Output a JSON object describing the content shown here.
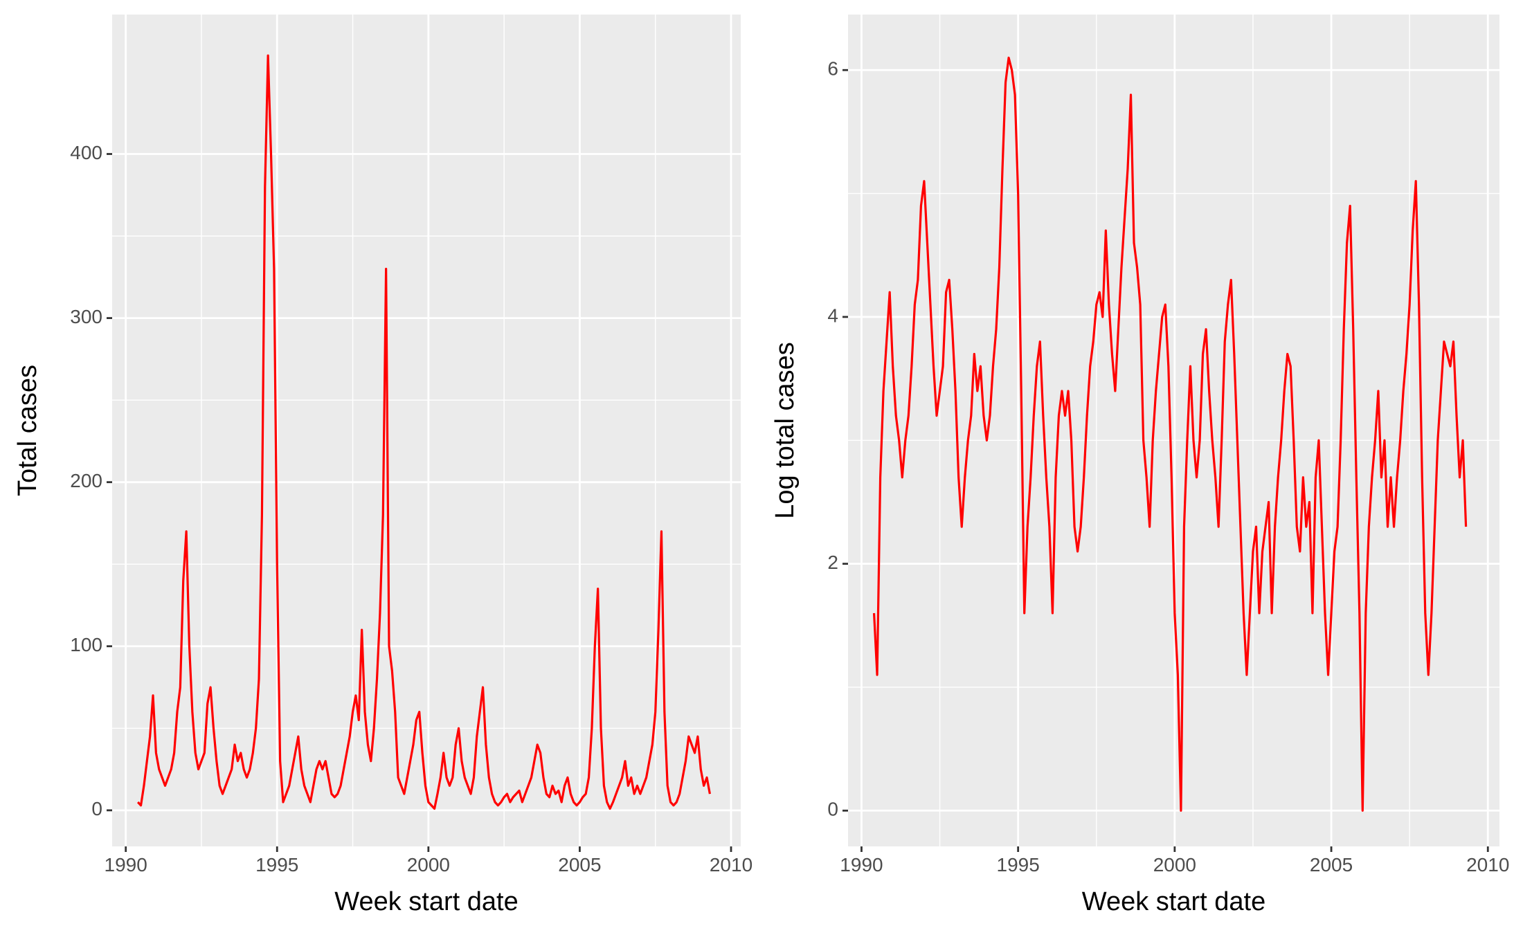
{
  "chart_data": [
    {
      "type": "line",
      "xlabel": "Week start date",
      "ylabel": "Total cases",
      "x": [
        1990.4,
        1990.5,
        1990.6,
        1990.7,
        1990.8,
        1990.9,
        1991.0,
        1991.1,
        1991.2,
        1991.3,
        1991.4,
        1991.5,
        1991.6,
        1991.7,
        1991.8,
        1991.9,
        1992.0,
        1992.1,
        1992.2,
        1992.3,
        1992.4,
        1992.5,
        1992.6,
        1992.7,
        1992.8,
        1992.9,
        1993.0,
        1993.1,
        1993.2,
        1993.3,
        1993.4,
        1993.5,
        1993.6,
        1993.7,
        1993.8,
        1993.9,
        1994.0,
        1994.1,
        1994.2,
        1994.3,
        1994.4,
        1994.5,
        1994.6,
        1994.7,
        1994.8,
        1994.9,
        1995.0,
        1995.1,
        1995.2,
        1995.3,
        1995.4,
        1995.5,
        1995.6,
        1995.7,
        1995.8,
        1995.9,
        1996.0,
        1996.1,
        1996.2,
        1996.3,
        1996.4,
        1996.5,
        1996.6,
        1996.7,
        1996.8,
        1996.9,
        1997.0,
        1997.1,
        1997.2,
        1997.3,
        1997.4,
        1997.5,
        1997.6,
        1997.7,
        1997.8,
        1997.9,
        1998.0,
        1998.1,
        1998.2,
        1998.3,
        1998.4,
        1998.5,
        1998.6,
        1998.7,
        1998.8,
        1998.9,
        1999.0,
        1999.1,
        1999.2,
        1999.3,
        1999.4,
        1999.5,
        1999.6,
        1999.7,
        1999.8,
        1999.9,
        2000.0,
        2000.1,
        2000.2,
        2000.3,
        2000.4,
        2000.5,
        2000.6,
        2000.7,
        2000.8,
        2000.9,
        2001.0,
        2001.1,
        2001.2,
        2001.3,
        2001.4,
        2001.5,
        2001.6,
        2001.7,
        2001.8,
        2001.9,
        2002.0,
        2002.1,
        2002.2,
        2002.3,
        2002.4,
        2002.5,
        2002.6,
        2002.7,
        2002.8,
        2002.9,
        2003.0,
        2003.1,
        2003.2,
        2003.3,
        2003.4,
        2003.5,
        2003.6,
        2003.7,
        2003.8,
        2003.9,
        2004.0,
        2004.1,
        2004.2,
        2004.3,
        2004.4,
        2004.5,
        2004.6,
        2004.7,
        2004.8,
        2004.9,
        2005.0,
        2005.1,
        2005.2,
        2005.3,
        2005.4,
        2005.5,
        2005.6,
        2005.7,
        2005.8,
        2005.9,
        2006.0,
        2006.1,
        2006.2,
        2006.3,
        2006.4,
        2006.5,
        2006.6,
        2006.7,
        2006.8,
        2006.9,
        2007.0,
        2007.1,
        2007.2,
        2007.3,
        2007.4,
        2007.5,
        2007.6,
        2007.7,
        2007.8,
        2007.9,
        2008.0,
        2008.1,
        2008.2,
        2008.3,
        2008.4,
        2008.5,
        2008.6,
        2008.7,
        2008.8,
        2008.9,
        2009.0,
        2009.1,
        2009.2,
        2009.3
      ],
      "color": "#ff0000",
      "values": [
        5,
        3,
        15,
        30,
        45,
        70,
        35,
        25,
        20,
        15,
        20,
        25,
        35,
        60,
        75,
        140,
        170,
        100,
        60,
        35,
        25,
        30,
        35,
        65,
        75,
        50,
        30,
        15,
        10,
        15,
        20,
        25,
        40,
        30,
        35,
        25,
        20,
        25,
        35,
        50,
        80,
        180,
        380,
        460,
        400,
        330,
        150,
        30,
        5,
        10,
        15,
        25,
        35,
        45,
        25,
        15,
        10,
        5,
        15,
        25,
        30,
        25,
        30,
        20,
        10,
        8,
        10,
        15,
        25,
        35,
        45,
        60,
        70,
        55,
        110,
        60,
        40,
        30,
        50,
        80,
        120,
        180,
        330,
        100,
        85,
        60,
        20,
        15,
        10,
        20,
        30,
        40,
        55,
        60,
        35,
        15,
        5,
        3,
        1,
        10,
        20,
        35,
        20,
        15,
        20,
        40,
        50,
        30,
        20,
        15,
        10,
        20,
        45,
        60,
        75,
        40,
        20,
        10,
        5,
        3,
        5,
        8,
        10,
        5,
        8,
        10,
        12,
        5,
        10,
        15,
        20,
        30,
        40,
        35,
        20,
        10,
        8,
        15,
        10,
        12,
        5,
        15,
        20,
        10,
        5,
        3,
        5,
        8,
        10,
        20,
        50,
        100,
        135,
        50,
        15,
        5,
        1,
        5,
        10,
        15,
        20,
        30,
        15,
        20,
        10,
        15,
        10,
        15,
        20,
        30,
        40,
        60,
        110,
        170,
        60,
        15,
        5,
        3,
        5,
        10,
        20,
        30,
        45,
        40,
        35,
        45,
        25,
        15,
        20,
        10
      ],
      "xlim": [
        1989.55,
        2010.32
      ],
      "xticks": [
        1990,
        1995,
        2000,
        2005,
        2010
      ],
      "ylim": [
        -22,
        485
      ],
      "yticks": [
        0,
        100,
        200,
        300,
        400
      ],
      "grid": true
    },
    {
      "type": "line",
      "xlabel": "Week start date",
      "ylabel": "Log total cases",
      "x": [
        1990.4,
        1990.5,
        1990.6,
        1990.7,
        1990.8,
        1990.9,
        1991.0,
        1991.1,
        1991.2,
        1991.3,
        1991.4,
        1991.5,
        1991.6,
        1991.7,
        1991.8,
        1991.9,
        1992.0,
        1992.1,
        1992.2,
        1992.3,
        1992.4,
        1992.5,
        1992.6,
        1992.7,
        1992.8,
        1992.9,
        1993.0,
        1993.1,
        1993.2,
        1993.3,
        1993.4,
        1993.5,
        1993.6,
        1993.7,
        1993.8,
        1993.9,
        1994.0,
        1994.1,
        1994.2,
        1994.3,
        1994.4,
        1994.5,
        1994.6,
        1994.7,
        1994.8,
        1994.9,
        1995.0,
        1995.1,
        1995.2,
        1995.3,
        1995.4,
        1995.5,
        1995.6,
        1995.7,
        1995.8,
        1995.9,
        1996.0,
        1996.1,
        1996.2,
        1996.3,
        1996.4,
        1996.5,
        1996.6,
        1996.7,
        1996.8,
        1996.9,
        1997.0,
        1997.1,
        1997.2,
        1997.3,
        1997.4,
        1997.5,
        1997.6,
        1997.7,
        1997.8,
        1997.9,
        1998.0,
        1998.1,
        1998.2,
        1998.3,
        1998.4,
        1998.5,
        1998.6,
        1998.7,
        1998.8,
        1998.9,
        1999.0,
        1999.1,
        1999.2,
        1999.3,
        1999.4,
        1999.5,
        1999.6,
        1999.7,
        1999.8,
        1999.9,
        2000.0,
        2000.1,
        2000.2,
        2000.3,
        2000.4,
        2000.5,
        2000.6,
        2000.7,
        2000.8,
        2000.9,
        2001.0,
        2001.1,
        2001.2,
        2001.3,
        2001.4,
        2001.5,
        2001.6,
        2001.7,
        2001.8,
        2001.9,
        2002.0,
        2002.1,
        2002.2,
        2002.3,
        2002.4,
        2002.5,
        2002.6,
        2002.7,
        2002.8,
        2002.9,
        2003.0,
        2003.1,
        2003.2,
        2003.3,
        2003.4,
        2003.5,
        2003.6,
        2003.7,
        2003.8,
        2003.9,
        2004.0,
        2004.1,
        2004.2,
        2004.3,
        2004.4,
        2004.5,
        2004.6,
        2004.7,
        2004.8,
        2004.9,
        2005.0,
        2005.1,
        2005.2,
        2005.3,
        2005.4,
        2005.5,
        2005.6,
        2005.7,
        2005.8,
        2005.9,
        2006.0,
        2006.1,
        2006.2,
        2006.3,
        2006.4,
        2006.5,
        2006.6,
        2006.7,
        2006.8,
        2006.9,
        2007.0,
        2007.1,
        2007.2,
        2007.3,
        2007.4,
        2007.5,
        2007.6,
        2007.7,
        2007.8,
        2007.9,
        2008.0,
        2008.1,
        2008.2,
        2008.3,
        2008.4,
        2008.5,
        2008.6,
        2008.7,
        2008.8,
        2008.9,
        2009.0,
        2009.1,
        2009.2,
        2009.3
      ],
      "color": "#ff0000",
      "values": [
        1.6,
        1.1,
        2.7,
        3.4,
        3.8,
        4.2,
        3.6,
        3.2,
        3.0,
        2.7,
        3.0,
        3.2,
        3.6,
        4.1,
        4.3,
        4.9,
        5.1,
        4.6,
        4.1,
        3.6,
        3.2,
        3.4,
        3.6,
        4.2,
        4.3,
        3.9,
        3.4,
        2.7,
        2.3,
        2.7,
        3.0,
        3.2,
        3.7,
        3.4,
        3.6,
        3.2,
        3.0,
        3.2,
        3.6,
        3.9,
        4.4,
        5.2,
        5.9,
        6.1,
        6.0,
        5.8,
        5.0,
        3.4,
        1.6,
        2.3,
        2.7,
        3.2,
        3.6,
        3.8,
        3.2,
        2.7,
        2.3,
        1.6,
        2.7,
        3.2,
        3.4,
        3.2,
        3.4,
        3.0,
        2.3,
        2.1,
        2.3,
        2.7,
        3.2,
        3.6,
        3.8,
        4.1,
        4.2,
        4.0,
        4.7,
        4.1,
        3.7,
        3.4,
        3.9,
        4.4,
        4.8,
        5.2,
        5.8,
        4.6,
        4.4,
        4.1,
        3.0,
        2.7,
        2.3,
        3.0,
        3.4,
        3.7,
        4.0,
        4.1,
        3.6,
        2.7,
        1.6,
        1.1,
        0,
        2.3,
        3.0,
        3.6,
        3.0,
        2.7,
        3.0,
        3.7,
        3.9,
        3.4,
        3.0,
        2.7,
        2.3,
        3.0,
        3.8,
        4.1,
        4.3,
        3.7,
        3.0,
        2.3,
        1.6,
        1.1,
        1.6,
        2.1,
        2.3,
        1.6,
        2.1,
        2.3,
        2.5,
        1.6,
        2.3,
        2.7,
        3.0,
        3.4,
        3.7,
        3.6,
        3.0,
        2.3,
        2.1,
        2.7,
        2.3,
        2.5,
        1.6,
        2.7,
        3.0,
        2.3,
        1.6,
        1.1,
        1.6,
        2.1,
        2.3,
        3.0,
        3.9,
        4.6,
        4.9,
        3.9,
        2.7,
        1.6,
        0,
        1.6,
        2.3,
        2.7,
        3.0,
        3.4,
        2.7,
        3.0,
        2.3,
        2.7,
        2.3,
        2.7,
        3.0,
        3.4,
        3.7,
        4.1,
        4.7,
        5.1,
        4.1,
        2.7,
        1.6,
        1.1,
        1.6,
        2.3,
        3.0,
        3.4,
        3.8,
        3.7,
        3.6,
        3.8,
        3.2,
        2.7,
        3.0,
        2.3
      ],
      "xlim": [
        1989.57,
        2010.37
      ],
      "xticks": [
        1990,
        1995,
        2000,
        2005,
        2010
      ],
      "ylim": [
        -0.29,
        6.45
      ],
      "yticks": [
        0,
        2,
        4,
        6
      ],
      "grid": true
    }
  ]
}
